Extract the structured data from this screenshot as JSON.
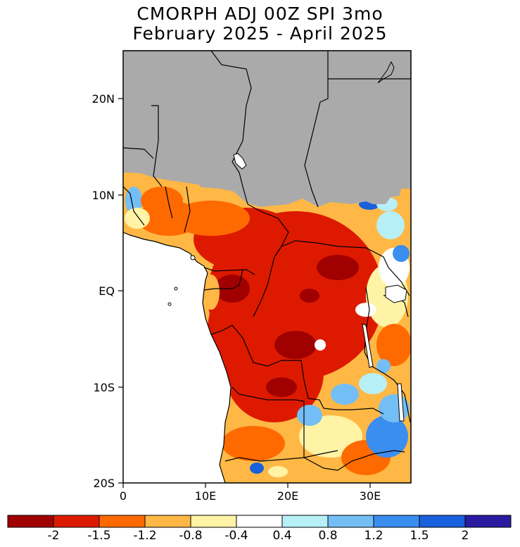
{
  "title": {
    "line1": "CMORPH ADJ 00Z SPI 3mo",
    "line2": "February 2025 - April 2025"
  },
  "axes": {
    "lat_ticks": [
      "20N",
      "10N",
      "EQ",
      "10S",
      "20S"
    ],
    "lon_ticks": [
      "0",
      "10E",
      "20E",
      "30E"
    ]
  },
  "legend": {
    "tick_labels": [
      "-2",
      "-1.5",
      "-1.2",
      "-0.8",
      "-0.4",
      "0.4",
      "0.8",
      "1.2",
      "1.5",
      "2"
    ],
    "colors": [
      "#a00000",
      "#dd1a00",
      "#ff6a00",
      "#ffb845",
      "#fff3a6",
      "#ffffff",
      "#b8f0f8",
      "#74bef6",
      "#3a8ef0",
      "#1860dc",
      "#2a1aa0"
    ]
  },
  "map_colors": {
    "ocean": "#ffffff",
    "no_data_land": "#aaaaaa",
    "border": "#000000"
  }
}
